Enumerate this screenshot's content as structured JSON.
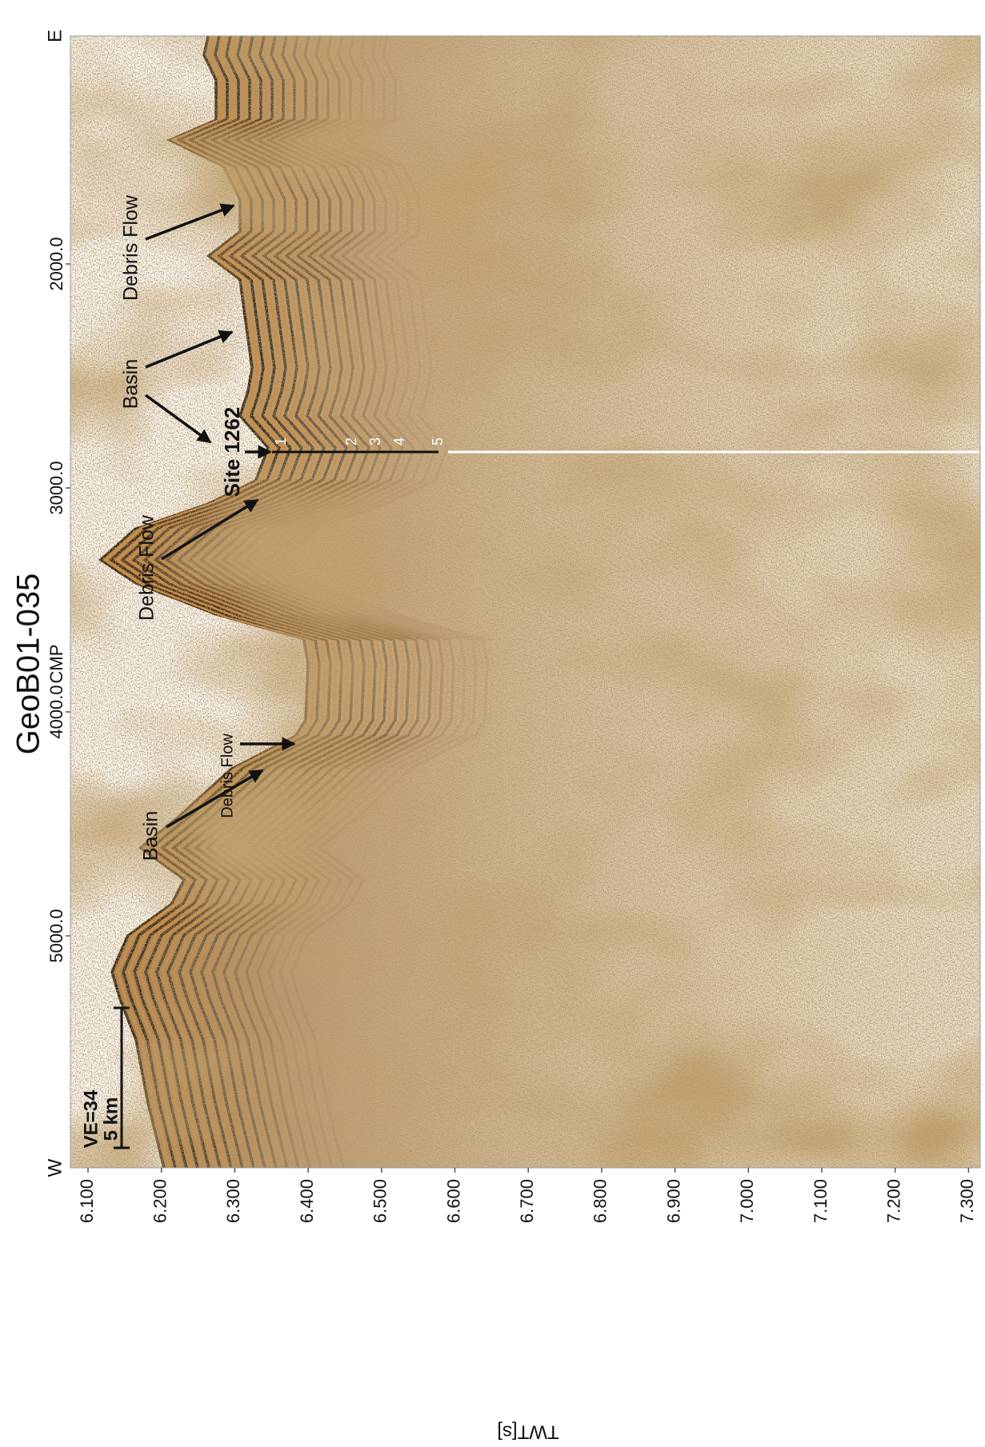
{
  "figure": {
    "title": "GeoB01-035",
    "subtitle": "CMP",
    "x_axis": {
      "ends": [
        "W",
        "E"
      ],
      "ticks": [
        {
          "value": 2000,
          "label": "2000.0"
        },
        {
          "value": 3000,
          "label": "3000.0"
        },
        {
          "value": 4000,
          "label": "4000.0"
        },
        {
          "value": 5000,
          "label": "5000.0"
        }
      ]
    },
    "y_axis": {
      "label": "TWT[s]",
      "ticks": [
        {
          "value": 6.1,
          "label": "6.100"
        },
        {
          "value": 6.2,
          "label": "6.200"
        },
        {
          "value": 6.3,
          "label": "6.300"
        },
        {
          "value": 6.4,
          "label": "6.400"
        },
        {
          "value": 6.5,
          "label": "6.500"
        },
        {
          "value": 6.6,
          "label": "6.600"
        },
        {
          "value": 6.7,
          "label": "6.700"
        },
        {
          "value": 6.8,
          "label": "6.800"
        },
        {
          "value": 6.9,
          "label": "6.900"
        },
        {
          "value": 7.0,
          "label": "7.000"
        },
        {
          "value": 7.1,
          "label": "7.100"
        },
        {
          "value": 7.2,
          "label": "7.200"
        },
        {
          "value": 7.3,
          "label": "7.300"
        }
      ]
    },
    "annotations": [
      "Debris Flow",
      "Basin",
      "Debris Flow",
      "Debris Flow",
      "Basin"
    ],
    "site": {
      "label": "Site 1262",
      "horizons": [
        "1",
        "2",
        "3",
        "4",
        "5"
      ]
    },
    "scale": {
      "ve": "VE=34",
      "length": "5 km"
    }
  }
}
